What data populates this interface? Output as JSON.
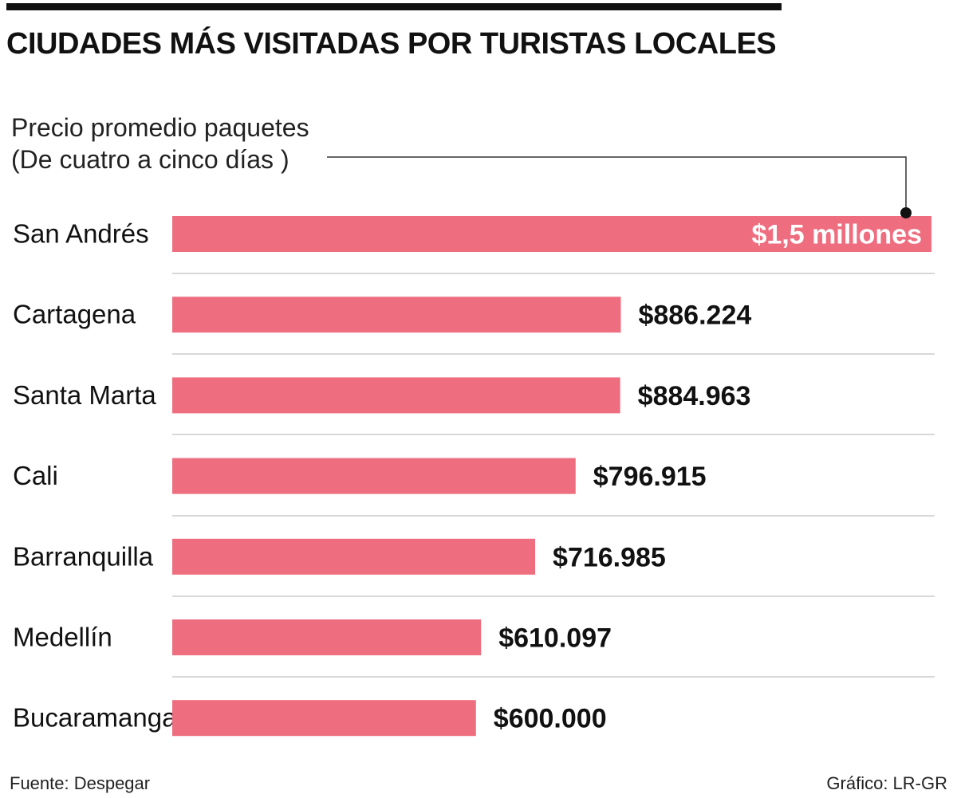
{
  "header": {
    "title": "CIUDADES MÁS VISITADAS POR TURISTAS LOCALES",
    "subtitle_line1": "Precio promedio paquetes",
    "subtitle_line2": "(De cuatro a cinco días )"
  },
  "footer": {
    "source": "Fuente: Despegar",
    "credit": "Gráfico: LR-GR"
  },
  "colors": {
    "bar": "#ee6e80",
    "text": "#111111",
    "separator": "#cccccc",
    "inside_label": "#ffffff"
  },
  "chart_data": {
    "type": "bar",
    "orientation": "horizontal",
    "title": "CIUDADES MÁS VISITADAS POR TURISTAS LOCALES",
    "subtitle": "Precio promedio paquetes (De cuatro a cinco días )",
    "xlabel": "",
    "ylabel": "",
    "unit": "COP",
    "xlim": [
      0,
      1500000
    ],
    "categories": [
      "San Andrés",
      "Cartagena",
      "Santa Marta",
      "Cali",
      "Barranquilla",
      "Medellín",
      "Bucaramanga"
    ],
    "values": [
      1500000,
      886224,
      884963,
      796915,
      716985,
      610097,
      600000
    ],
    "value_labels": [
      "$1,5 millones",
      "$886.224",
      "$884.963",
      "$796.915",
      "$716.985",
      "$610.097",
      "$600.000"
    ],
    "grid": false,
    "legend": "none"
  }
}
